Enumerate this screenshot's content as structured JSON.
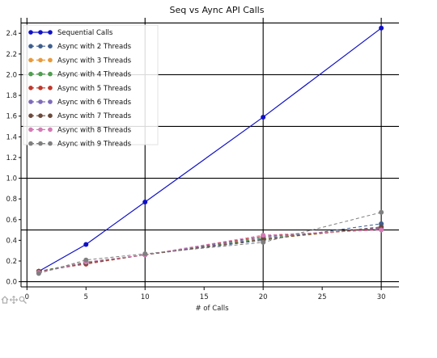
{
  "toolbar": {
    "icons": [
      "home-icon",
      "pan-icon",
      "zoom-icon"
    ],
    "color": "#b0b0b0"
  },
  "chart_data": {
    "type": "line",
    "title": "Seq vs Aync API Calls",
    "xlabel": "# of Calls",
    "ylabel": "",
    "xlim": [
      -0.5,
      31.5
    ],
    "ylim": [
      -0.05,
      2.55
    ],
    "xticks": [
      "0",
      "5",
      "10",
      "15",
      "20",
      "25",
      "30"
    ],
    "xtick_values": [
      0,
      5,
      10,
      15,
      20,
      25,
      30
    ],
    "yticks": [
      "0.0",
      "0.2",
      "0.4",
      "0.6",
      "0.8",
      "1.0",
      "1.2",
      "1.4",
      "1.6",
      "1.8",
      "2.0",
      "2.2",
      "2.4"
    ],
    "ytick_values": [
      0,
      0.2,
      0.4,
      0.6,
      0.8,
      1.0,
      1.2,
      1.4,
      1.6,
      1.8,
      2.0,
      2.2,
      2.4
    ],
    "grid_x": [
      0,
      10,
      20,
      30
    ],
    "grid_y": [
      0,
      0.5,
      1.0,
      1.5,
      2.0,
      2.5
    ],
    "legend_position": "top-left",
    "x": [
      1,
      5,
      10,
      20,
      30
    ],
    "series": [
      {
        "name": "Sequential Calls",
        "values": [
          0.1,
          0.36,
          0.77,
          1.59,
          2.45
        ],
        "color": "#1010c8",
        "style": "solid"
      },
      {
        "name": "Async with 2 Threads",
        "values": [
          0.1,
          0.19,
          0.26,
          0.4,
          0.56
        ],
        "color": "#3e5f8f",
        "style": "dashed"
      },
      {
        "name": "Async with 3 Threads",
        "values": [
          0.1,
          0.18,
          0.26,
          0.41,
          0.52
        ],
        "color": "#e89a3c",
        "style": "dashed"
      },
      {
        "name": "Async with 4 Threads",
        "values": [
          0.1,
          0.19,
          0.26,
          0.42,
          0.52
        ],
        "color": "#4f9e4f",
        "style": "dashed"
      },
      {
        "name": "Async with 5 Threads",
        "values": [
          0.1,
          0.17,
          0.26,
          0.44,
          0.51
        ],
        "color": "#c0392b",
        "style": "dashed"
      },
      {
        "name": "Async with 6 Threads",
        "values": [
          0.09,
          0.18,
          0.26,
          0.43,
          0.52
        ],
        "color": "#7d6bb8",
        "style": "dashed"
      },
      {
        "name": "Async with 7 Threads",
        "values": [
          0.1,
          0.18,
          0.26,
          0.41,
          0.53
        ],
        "color": "#6b4a3c",
        "style": "dashed"
      },
      {
        "name": "Async with 8 Threads",
        "values": [
          0.09,
          0.19,
          0.26,
          0.45,
          0.5
        ],
        "color": "#d47ab4",
        "style": "dashed"
      },
      {
        "name": "Async with 9 Threads",
        "values": [
          0.08,
          0.21,
          0.27,
          0.38,
          0.67
        ],
        "color": "#7f7f7f",
        "style": "dashed"
      }
    ]
  }
}
